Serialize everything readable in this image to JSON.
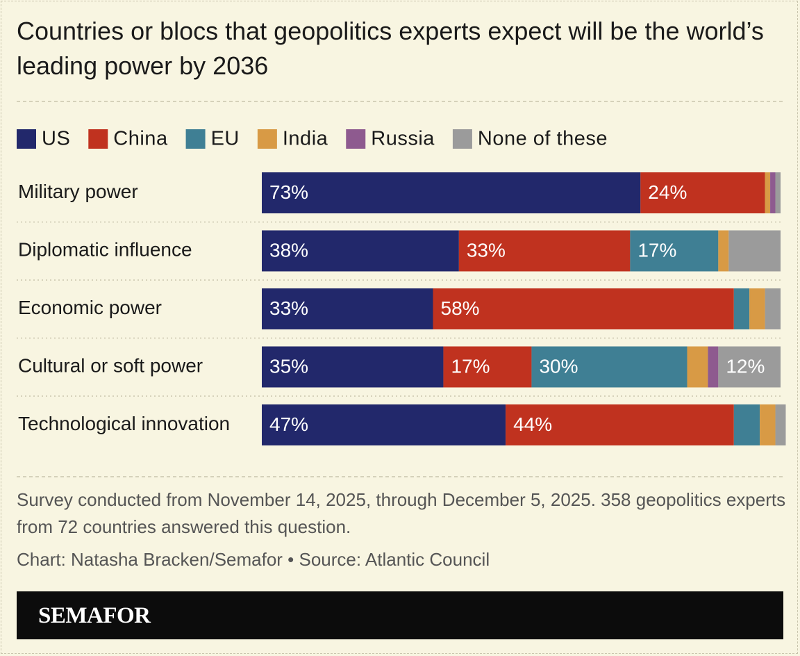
{
  "chart_data": {
    "type": "stacked-barh",
    "title": "Countries or blocs that geopolitics experts expect will be the world’s leading power by 2036",
    "categories": [
      "Military power",
      "Diplomatic influence",
      "Economic power",
      "Cultural or soft power",
      "Technological innovation"
    ],
    "xlim": [
      0,
      100
    ],
    "series": [
      {
        "name": "US",
        "color": "#22286b",
        "values": [
          73,
          38,
          33,
          35,
          47
        ],
        "value_labels": [
          "73%",
          "38%",
          "33%",
          "35%",
          "47%"
        ]
      },
      {
        "name": "China",
        "color": "#c0321f",
        "values": [
          24,
          33,
          58,
          17,
          44
        ],
        "value_labels": [
          "24%",
          "33%",
          "58%",
          "17%",
          "44%"
        ]
      },
      {
        "name": "EU",
        "color": "#3f7f94",
        "values": [
          0,
          17,
          3,
          30,
          5
        ],
        "value_labels": [
          null,
          "17%",
          null,
          "30%",
          null
        ]
      },
      {
        "name": "India",
        "color": "#d89a45",
        "values": [
          1,
          2,
          3,
          4,
          3
        ],
        "value_labels": [
          null,
          null,
          null,
          null,
          null
        ]
      },
      {
        "name": "Russia",
        "color": "#8e5a8f",
        "values": [
          1,
          0,
          0,
          2,
          0
        ],
        "value_labels": [
          null,
          null,
          null,
          null,
          null
        ]
      },
      {
        "name": "None of these",
        "color": "#9b9b9b",
        "values": [
          1,
          10,
          3,
          12,
          2
        ],
        "value_labels": [
          null,
          null,
          null,
          "12%",
          null
        ]
      }
    ],
    "note": "Survey conducted from November 14, 2025, through December 5, 2025. 358 geopolitics experts from 72 countries answered this question.",
    "credit": "Chart: Natasha Bracken/Semafor • Source: Atlantic Council",
    "brand": "SEMAFOR"
  }
}
